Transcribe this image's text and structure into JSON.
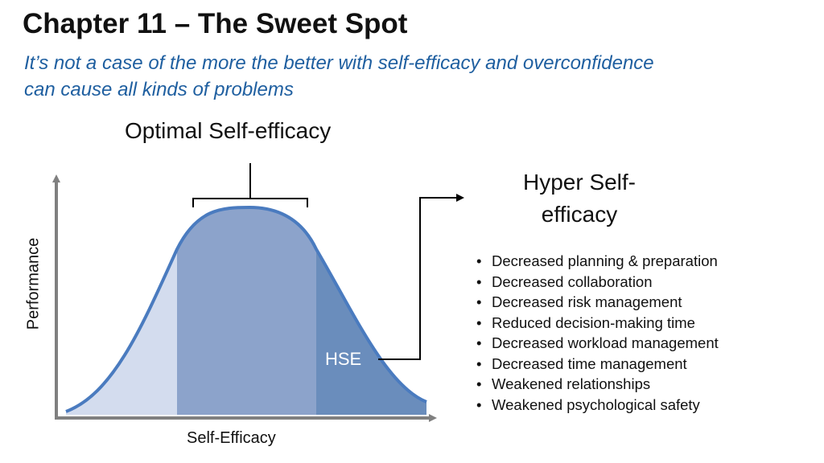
{
  "slide": {
    "title": "Chapter 11 – The Sweet Spot",
    "subtitle": "It’s not a case of the more the better with self-efficacy and overconfidence can cause all kinds of problems"
  },
  "diagram": {
    "optimal_label": "Optimal Self-efficacy",
    "hyper_title": "Hyper Self-efficacy",
    "region_label": "HSE",
    "x_axis_label": "Self-Efficacy",
    "y_axis_label": "Performance",
    "colors": {
      "low_region": "#d3dcee",
      "optimal_region": "#8ca3cb",
      "hyper_region": "#6a8dbc",
      "curve": "#4a7bbf",
      "axis": "#808080"
    }
  },
  "hse_effects": [
    "Decreased planning & preparation",
    "Decreased collaboration",
    "Decreased risk management",
    "Reduced decision-making time",
    "Decreased workload management",
    "Decreased time management",
    "Weakened relationships",
    "Weakened psychological safety"
  ]
}
